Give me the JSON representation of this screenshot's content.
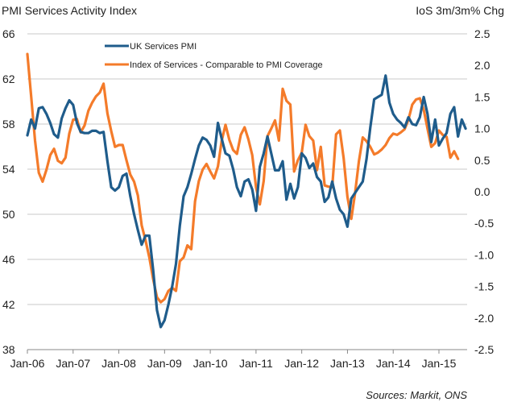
{
  "chart_data": {
    "type": "line",
    "title_left": "PMI Services Activity Index",
    "title_right": "IoS 3m/3m% Chg",
    "source": "Sources: Markit, ONS",
    "x_start": "Jan-06",
    "x_frequency": "monthly",
    "x_tick_labels": [
      "Jan-06",
      "Jan-07",
      "Jan-08",
      "Jan-09",
      "Jan-10",
      "Jan-11",
      "Jan-12",
      "Jan-13",
      "Jan-14",
      "Jan-15"
    ],
    "y_left": {
      "label": "PMI Services Activity Index",
      "range": [
        38,
        66
      ],
      "ticks": [
        "38",
        "42",
        "46",
        "50",
        "54",
        "58",
        "62",
        "66"
      ]
    },
    "y_right": {
      "label": "IoS 3m/3m% Chg",
      "range": [
        -2.5,
        2.5
      ],
      "ticks": [
        "-2.5",
        "-2.0",
        "-1.5",
        "-1.0",
        "-0.5",
        "0.0",
        "0.5",
        "1.0",
        "1.5",
        "2.0",
        "2.5"
      ]
    },
    "grid": true,
    "legend_position": "top-left",
    "series": [
      {
        "name": "UK Services PMI",
        "axis": "left",
        "color": "#1f5c8b",
        "values": [
          57.0,
          58.4,
          57.6,
          59.4,
          59.5,
          58.9,
          58.1,
          57.1,
          56.8,
          58.5,
          59.4,
          60.1,
          59.7,
          58.1,
          57.3,
          57.2,
          57.2,
          57.4,
          57.4,
          57.2,
          57.3,
          54.7,
          52.4,
          52.1,
          52.4,
          53.4,
          53.6,
          51.6,
          50.0,
          48.6,
          47.3,
          48.1,
          48.1,
          45.1,
          41.5,
          40.0,
          40.6,
          42.0,
          43.6,
          45.6,
          49.0,
          51.6,
          52.4,
          53.6,
          54.9,
          56.1,
          56.8,
          56.6,
          56.1,
          55.1,
          58.1,
          56.7,
          55.4,
          55.2,
          54.0,
          52.4,
          51.6,
          52.9,
          53.1,
          52.2,
          50.3,
          54.2,
          55.4,
          56.9,
          55.4,
          53.9,
          53.9,
          54.7,
          51.3,
          52.7,
          51.4,
          52.4,
          55.4,
          55.0,
          54.1,
          54.5,
          53.3,
          52.9,
          51.1,
          51.5,
          52.9,
          51.4,
          50.4,
          50.0,
          48.9,
          51.4,
          51.9,
          52.4,
          52.9,
          54.9,
          57.7,
          60.2,
          60.4,
          60.6,
          62.3,
          59.9,
          58.9,
          58.4,
          58.1,
          57.7,
          58.6,
          58.0,
          57.9,
          58.6,
          60.4,
          58.9,
          56.4,
          58.4,
          56.1,
          56.7,
          57.2,
          58.9,
          59.5,
          56.9,
          58.4,
          57.6
        ]
      },
      {
        "name": "Index of Services - Comparable to PMI Coverage",
        "axis": "right",
        "color": "#f47b2a",
        "values": [
          2.18,
          1.51,
          0.81,
          0.3,
          0.16,
          0.35,
          0.58,
          0.68,
          0.49,
          0.45,
          0.54,
          0.92,
          1.14,
          1.15,
          0.94,
          1.05,
          1.28,
          1.41,
          1.51,
          1.57,
          1.71,
          1.24,
          0.96,
          0.71,
          0.74,
          0.74,
          0.5,
          0.27,
          0.16,
          -0.06,
          -0.53,
          -0.77,
          -1.04,
          -1.38,
          -1.67,
          -1.75,
          -1.7,
          -1.57,
          -1.52,
          -1.57,
          -1.1,
          -1.04,
          -0.85,
          -0.91,
          -0.15,
          0.17,
          0.35,
          0.44,
          0.32,
          0.21,
          0.4,
          0.81,
          1.06,
          0.82,
          0.66,
          0.6,
          0.9,
          1.02,
          0.83,
          0.58,
          0.07,
          -0.2,
          0.17,
          0.88,
          1.0,
          1.13,
          0.81,
          1.63,
          1.44,
          1.38,
          0.32,
          0.5,
          0.62,
          1.06,
          0.88,
          0.81,
          0.34,
          0.71,
          0.1,
          0.08,
          0.07,
          0.91,
          0.97,
          0.53,
          -0.08,
          -0.43,
          -0.02,
          0.48,
          0.86,
          0.8,
          0.71,
          0.59,
          0.62,
          0.67,
          0.74,
          0.85,
          0.92,
          0.9,
          0.94,
          0.99,
          1.14,
          1.38,
          1.46,
          1.48,
          1.3,
          1.0,
          0.71,
          0.77,
          0.97,
          0.9,
          0.87,
          0.54,
          0.64,
          0.52
        ]
      }
    ]
  }
}
